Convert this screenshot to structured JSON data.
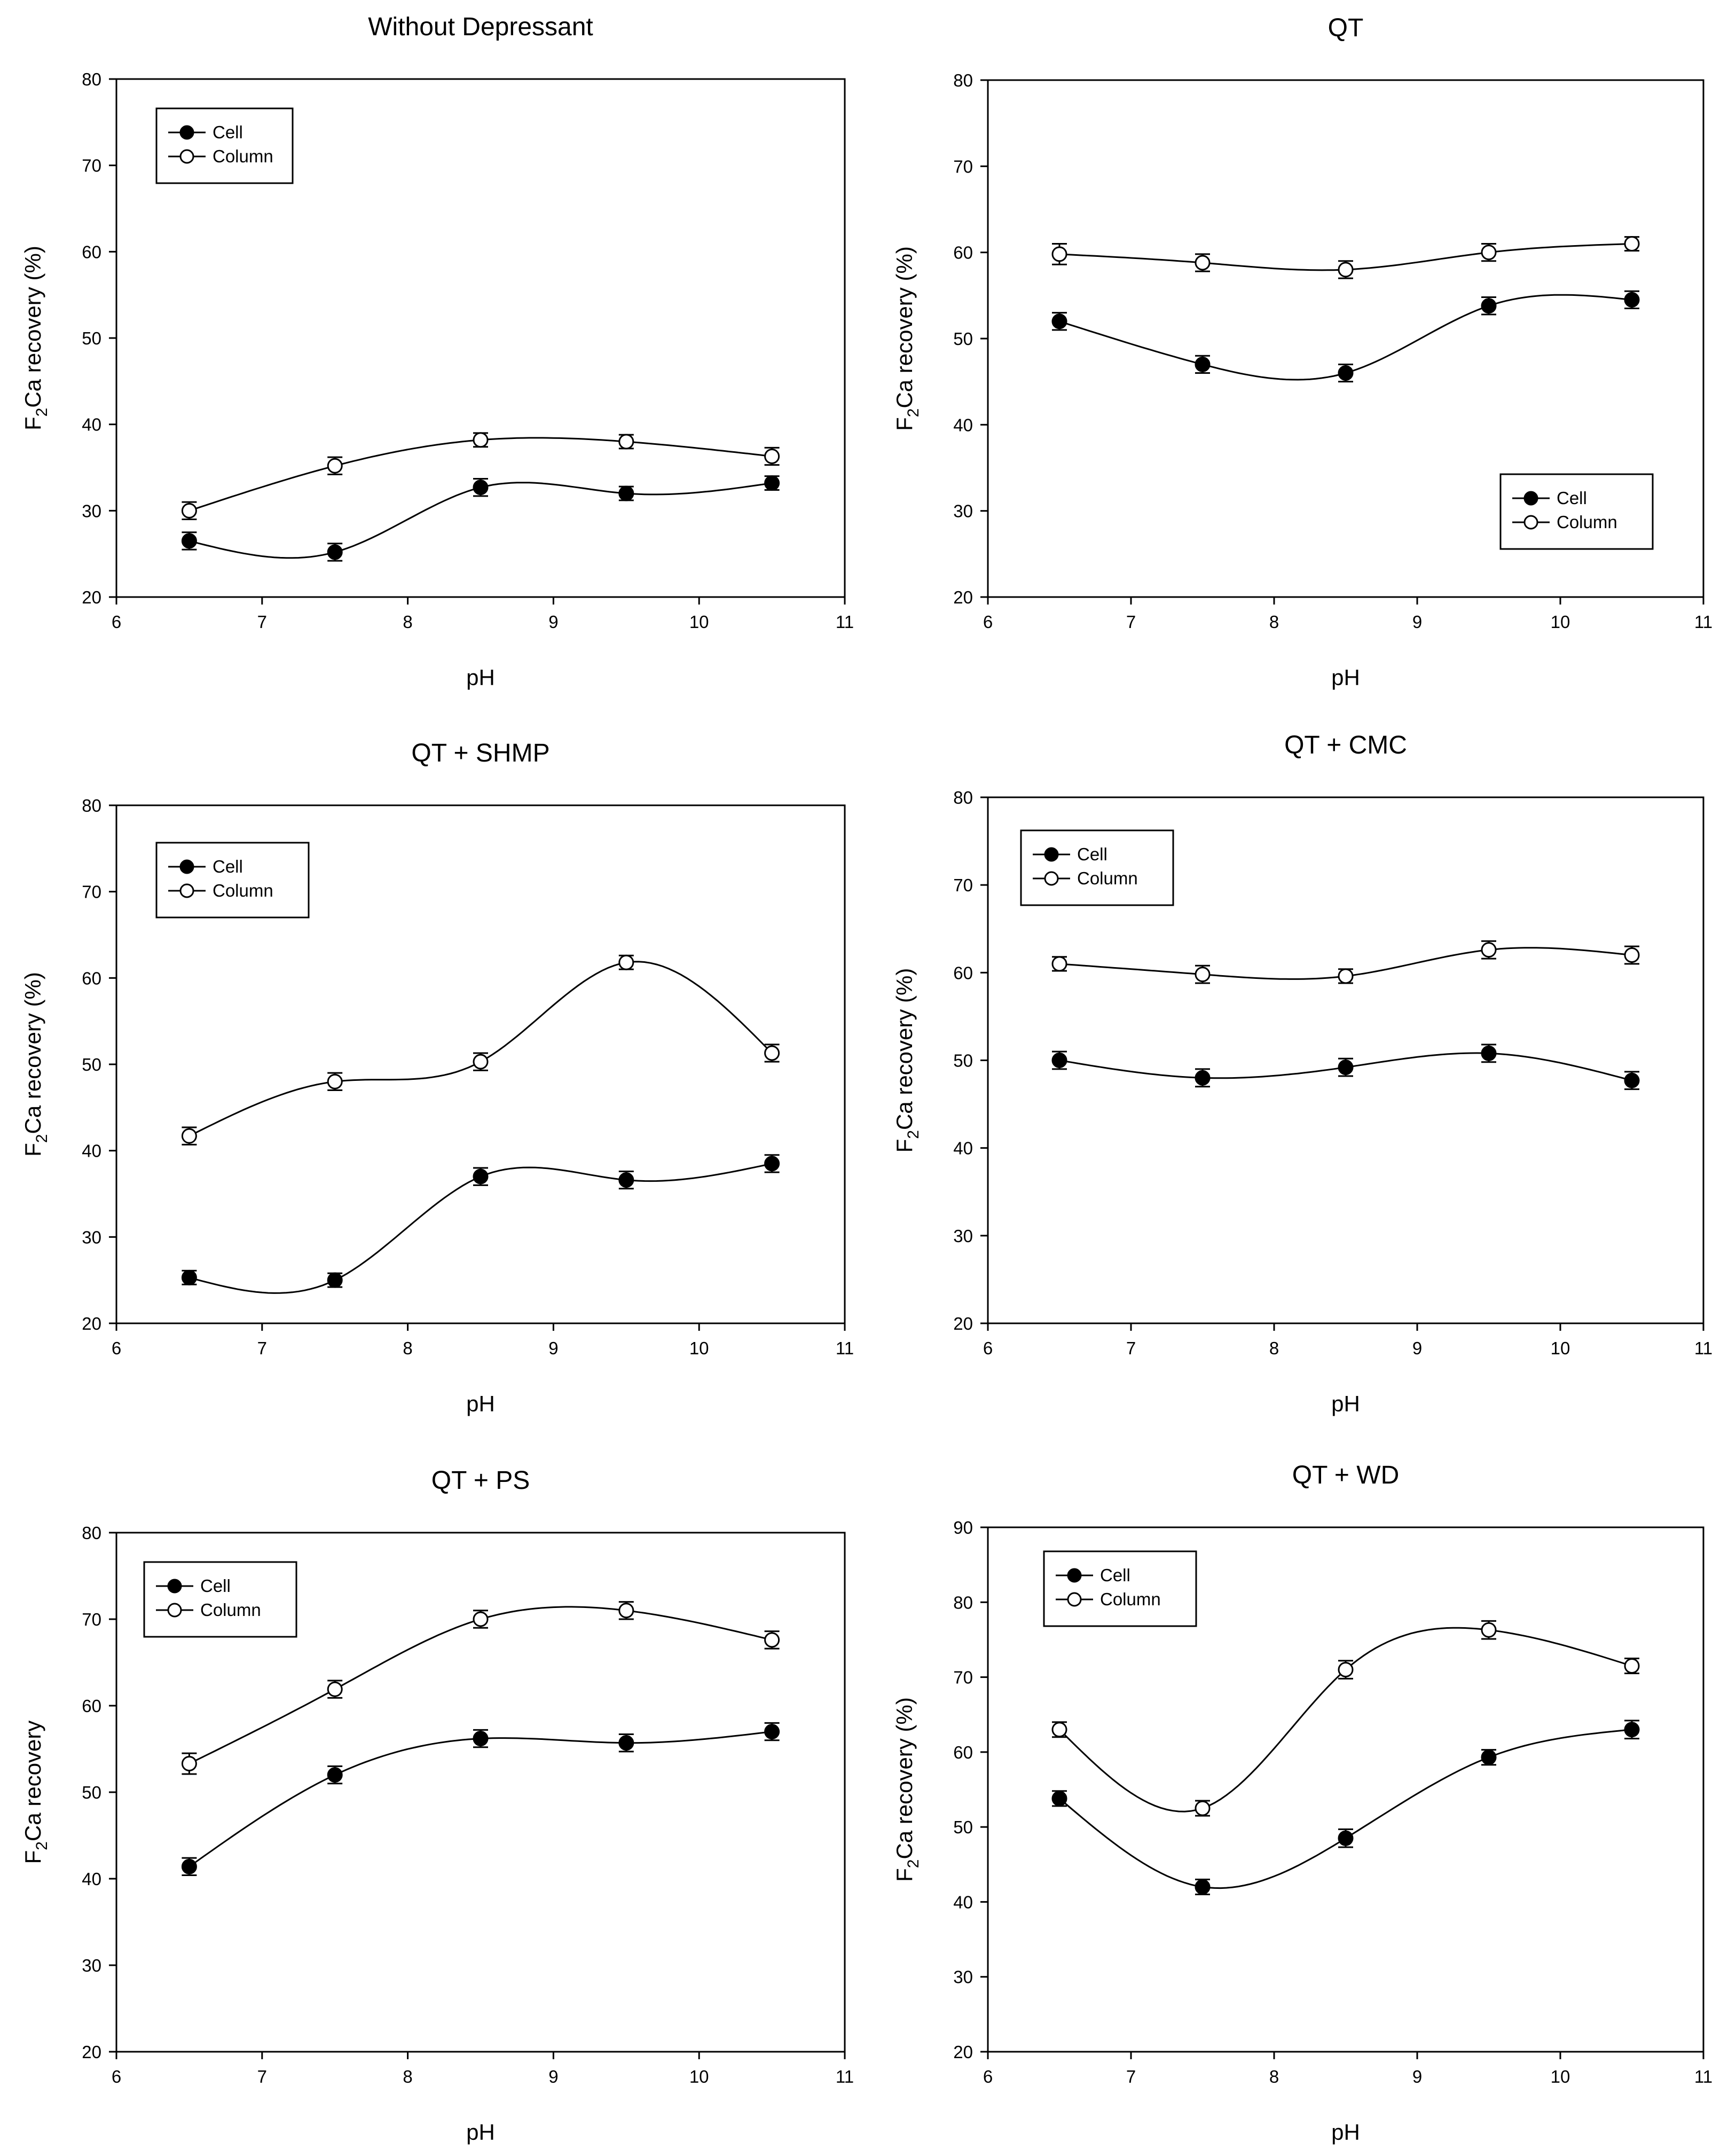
{
  "figure": {
    "charts": [
      {
        "title": "Without Depressant",
        "xlabel": "pH",
        "ylabel_prefix": "F",
        "ylabel_sub": "2",
        "ylabel_rest": "Ca recovery (%)",
        "ylim": [
          20,
          80
        ],
        "yticks": [
          20,
          30,
          40,
          50,
          60,
          70,
          80
        ],
        "xlim": [
          6,
          11
        ],
        "xticks": [
          6,
          7,
          8,
          9,
          10,
          11
        ],
        "legend": {
          "position": "top-left",
          "entries": [
            "Cell",
            "Column"
          ]
        }
      },
      {
        "title": "QT",
        "xlabel": "pH",
        "ylabel_prefix": "F",
        "ylabel_sub": "2",
        "ylabel_rest": "Ca recovery (%)",
        "ylim": [
          20,
          80
        ],
        "yticks": [
          20,
          30,
          40,
          50,
          60,
          70,
          80
        ],
        "xlim": [
          6,
          11
        ],
        "xticks": [
          6,
          7,
          8,
          9,
          10,
          11
        ],
        "legend": {
          "position": "bottom-right",
          "entries": [
            "Cell",
            "Column"
          ]
        }
      },
      {
        "title": "QT + SHMP",
        "xlabel": "pH",
        "ylabel_prefix": "F",
        "ylabel_sub": "2",
        "ylabel_rest": "Ca recovery (%)",
        "ylim": [
          20,
          80
        ],
        "yticks": [
          20,
          30,
          40,
          50,
          60,
          70,
          80
        ],
        "xlim": [
          6,
          11
        ],
        "xticks": [
          6,
          7,
          8,
          9,
          10,
          11
        ],
        "legend": {
          "position": "top-left",
          "entries": [
            "Cell",
            "Column"
          ]
        }
      },
      {
        "title": "QT + CMC",
        "xlabel": "pH",
        "ylabel_prefix": "F",
        "ylabel_sub": "2",
        "ylabel_rest": "Ca recovery (%)",
        "ylim": [
          20,
          80
        ],
        "yticks": [
          20,
          30,
          40,
          50,
          60,
          70,
          80
        ],
        "xlim": [
          6,
          11
        ],
        "xticks": [
          6,
          7,
          8,
          9,
          10,
          11
        ],
        "legend": {
          "position": "top-left",
          "entries": [
            "Cell",
            "Column"
          ]
        }
      },
      {
        "title": "QT + PS",
        "xlabel": "pH",
        "ylabel_prefix": "F",
        "ylabel_sub": "2",
        "ylabel_rest": "Ca recovery",
        "ylim": [
          20,
          80
        ],
        "yticks": [
          20,
          30,
          40,
          50,
          60,
          70,
          80
        ],
        "xlim": [
          6,
          11
        ],
        "xticks": [
          6,
          7,
          8,
          9,
          10,
          11
        ],
        "legend": {
          "position": "top-left",
          "entries": [
            "Cell",
            "Column"
          ]
        }
      },
      {
        "title": "QT + WD",
        "xlabel": "pH",
        "ylabel_prefix": "F",
        "ylabel_sub": "2",
        "ylabel_rest": "Ca recovery (%)",
        "ylim": [
          20,
          90
        ],
        "yticks": [
          20,
          30,
          40,
          50,
          60,
          70,
          80,
          90
        ],
        "xlim": [
          6,
          11
        ],
        "xticks": [
          6,
          7,
          8,
          9,
          10,
          11
        ],
        "legend": {
          "position": "top-left",
          "entries": [
            "Cell",
            "Column"
          ]
        }
      }
    ]
  },
  "chart_data": [
    {
      "type": "line",
      "title": "Without Depressant",
      "xlabel": "pH",
      "ylabel": "F2Ca recovery (%)",
      "xlim": [
        6,
        11
      ],
      "ylim": [
        20,
        80
      ],
      "grid": false,
      "legend": "top-left",
      "x": [
        6.5,
        7.5,
        8.5,
        9.5,
        10.5
      ],
      "series": [
        {
          "name": "Cell",
          "marker": "filled-circle",
          "values": [
            26.5,
            25.2,
            32.7,
            32.0,
            33.2
          ],
          "error": [
            1.0,
            1.0,
            1.0,
            0.8,
            0.8
          ]
        },
        {
          "name": "Column",
          "marker": "open-circle",
          "values": [
            30.0,
            35.2,
            38.2,
            38.0,
            36.3
          ],
          "error": [
            1.0,
            1.0,
            0.8,
            0.8,
            1.0
          ]
        }
      ]
    },
    {
      "type": "line",
      "title": "QT",
      "xlabel": "pH",
      "ylabel": "F2Ca recovery (%)",
      "xlim": [
        6,
        11
      ],
      "ylim": [
        20,
        80
      ],
      "grid": false,
      "legend": "bottom-right",
      "x": [
        6.5,
        7.5,
        8.5,
        9.5,
        10.5
      ],
      "series": [
        {
          "name": "Cell",
          "marker": "filled-circle",
          "values": [
            52.0,
            47.0,
            46.0,
            53.8,
            54.5
          ],
          "error": [
            1.0,
            1.0,
            1.0,
            1.0,
            1.0
          ]
        },
        {
          "name": "Column",
          "marker": "open-circle",
          "values": [
            59.8,
            58.8,
            58.0,
            60.0,
            61.0
          ],
          "error": [
            1.2,
            1.0,
            1.0,
            1.0,
            0.8
          ]
        }
      ]
    },
    {
      "type": "line",
      "title": "QT + SHMP",
      "xlabel": "pH",
      "ylabel": "F2Ca recovery (%)",
      "xlim": [
        6,
        11
      ],
      "ylim": [
        20,
        80
      ],
      "grid": false,
      "legend": "top-left",
      "x": [
        6.5,
        7.5,
        8.5,
        9.5,
        10.5
      ],
      "series": [
        {
          "name": "Cell",
          "marker": "filled-circle",
          "values": [
            25.3,
            25.0,
            37.0,
            36.6,
            38.5
          ],
          "error": [
            0.8,
            0.8,
            1.0,
            1.0,
            1.0
          ]
        },
        {
          "name": "Column",
          "marker": "open-circle",
          "values": [
            41.7,
            48.0,
            50.3,
            61.8,
            51.3
          ],
          "error": [
            1.0,
            1.0,
            1.0,
            0.8,
            1.0
          ]
        }
      ]
    },
    {
      "type": "line",
      "title": "QT + CMC",
      "xlabel": "pH",
      "ylabel": "F2Ca recovery (%)",
      "xlim": [
        6,
        11
      ],
      "ylim": [
        20,
        80
      ],
      "grid": false,
      "legend": "top-left",
      "x": [
        6.5,
        7.5,
        8.5,
        9.5,
        10.5
      ],
      "series": [
        {
          "name": "Cell",
          "marker": "filled-circle",
          "values": [
            50.0,
            48.0,
            49.2,
            50.8,
            47.7
          ],
          "error": [
            1.0,
            1.0,
            1.0,
            1.0,
            1.0
          ]
        },
        {
          "name": "Column",
          "marker": "open-circle",
          "values": [
            61.0,
            59.8,
            59.6,
            62.6,
            62.0
          ],
          "error": [
            0.8,
            1.0,
            0.8,
            1.0,
            1.0
          ]
        }
      ]
    },
    {
      "type": "line",
      "title": "QT + PS",
      "xlabel": "pH",
      "ylabel": "F2Ca recovery",
      "xlim": [
        6,
        11
      ],
      "ylim": [
        20,
        80
      ],
      "grid": false,
      "legend": "top-left",
      "x": [
        6.5,
        7.5,
        8.5,
        9.5,
        10.5
      ],
      "series": [
        {
          "name": "Cell",
          "marker": "filled-circle",
          "values": [
            41.4,
            52.0,
            56.2,
            55.7,
            57.0
          ],
          "error": [
            1.0,
            1.0,
            1.0,
            1.0,
            1.0
          ]
        },
        {
          "name": "Column",
          "marker": "open-circle",
          "values": [
            53.3,
            61.9,
            70.0,
            71.0,
            67.6
          ],
          "error": [
            1.2,
            1.0,
            1.0,
            1.0,
            1.0
          ]
        }
      ]
    },
    {
      "type": "line",
      "title": "QT + WD",
      "xlabel": "pH",
      "ylabel": "F2Ca recovery (%)",
      "xlim": [
        6,
        11
      ],
      "ylim": [
        20,
        90
      ],
      "grid": false,
      "legend": "top-left",
      "x": [
        6.5,
        7.5,
        8.5,
        9.5,
        10.5
      ],
      "series": [
        {
          "name": "Cell",
          "marker": "filled-circle",
          "values": [
            53.8,
            42.0,
            48.5,
            59.3,
            63.0
          ],
          "error": [
            1.0,
            1.0,
            1.2,
            1.0,
            1.2
          ]
        },
        {
          "name": "Column",
          "marker": "open-circle",
          "values": [
            63.0,
            52.5,
            71.0,
            76.3,
            71.5
          ],
          "error": [
            1.0,
            1.0,
            1.2,
            1.2,
            1.0
          ]
        }
      ]
    }
  ]
}
